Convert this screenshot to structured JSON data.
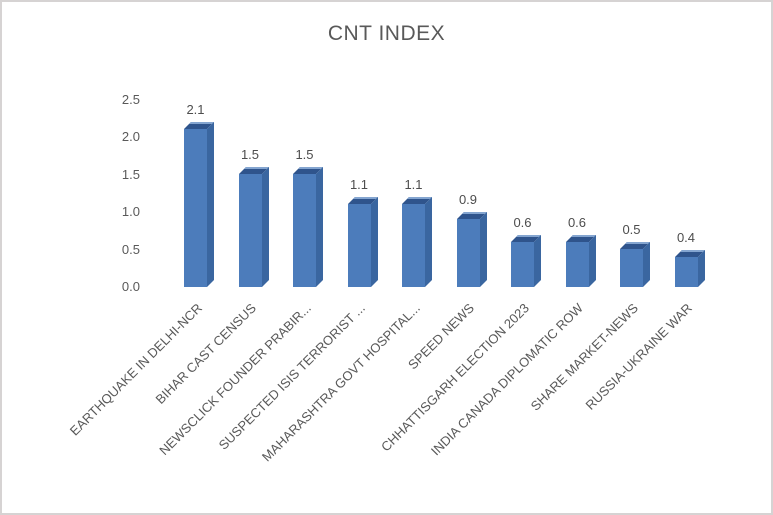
{
  "chart": {
    "title": "CNT INDEX"
  },
  "chart_data": {
    "type": "bar",
    "style": "3d-column",
    "title": "CNT INDEX",
    "categories": [
      "EARTHQUAKE IN DELHI-NCR",
      "BIHAR CAST CENSUS",
      "NEWSCLICK FOUNDER PRABIR...",
      "SUSPECTED ISIS TERRORIST ...",
      "MAHARASHTRA GOVT HOSPITAL...",
      "SPEED NEWS",
      "CHHATTISGARH ELECTION 2023",
      "INDIA CANADA DIPLOMATIC ROW",
      "SHARE MARKET-NEWS",
      "RUSSIA-UKRAINE WAR"
    ],
    "values": [
      2.1,
      1.5,
      1.5,
      1.1,
      1.1,
      0.9,
      0.6,
      0.6,
      0.5,
      0.4
    ],
    "data_labels": [
      "2.1",
      "1.5",
      "1.5",
      "1.1",
      "1.1",
      "0.9",
      "0.6",
      "0.6",
      "0.5",
      "0.4"
    ],
    "xlabel": "",
    "ylabel": "",
    "ylim": [
      0,
      2.5
    ],
    "y_ticks": [
      "0.0",
      "0.5",
      "1.0",
      "1.5",
      "2.0",
      "2.5"
    ],
    "grid": false,
    "legend": "none",
    "colors": {
      "bar_front": "#4c7cbb",
      "bar_top": "#2f548c",
      "bar_top_highlight": "#84a5d0",
      "bar_side": "#3a66a0",
      "text": "#595959",
      "data_label": "#4d4d4d",
      "border": "#d6d3d3",
      "background": "#ffffff"
    }
  }
}
